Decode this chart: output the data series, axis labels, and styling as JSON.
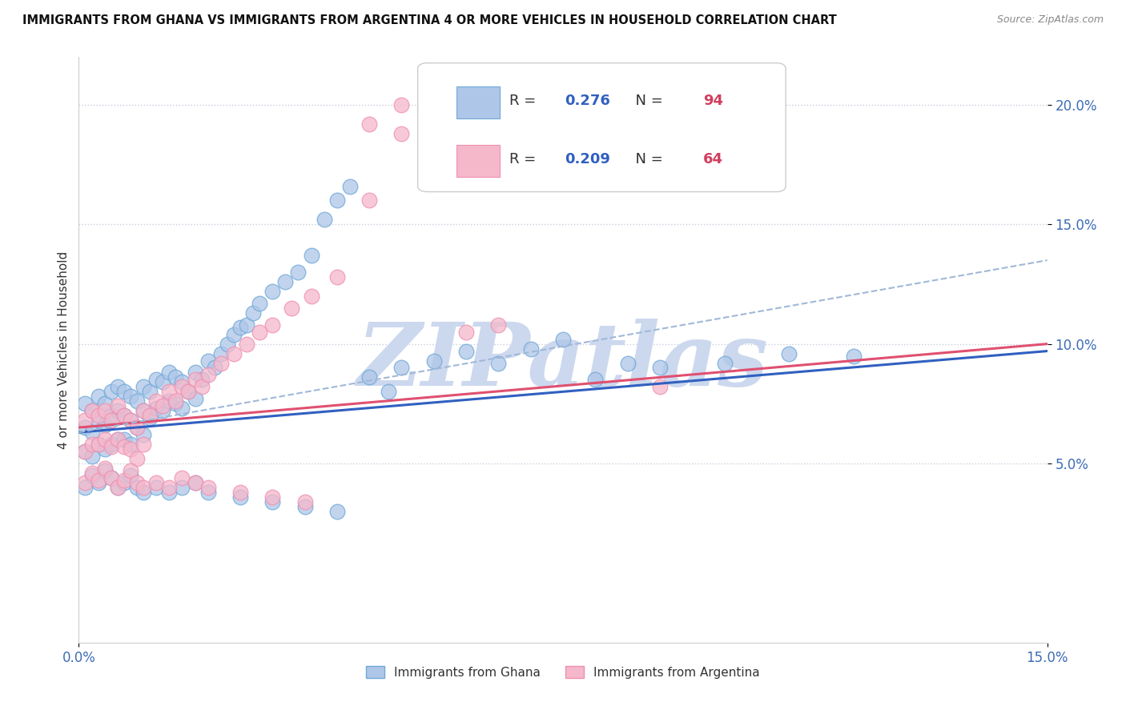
{
  "title": "IMMIGRANTS FROM GHANA VS IMMIGRANTS FROM ARGENTINA 4 OR MORE VEHICLES IN HOUSEHOLD CORRELATION CHART",
  "source": "Source: ZipAtlas.com",
  "ylabel": "4 or more Vehicles in Household",
  "x_min": 0.0,
  "x_max": 0.15,
  "y_min": -0.025,
  "y_max": 0.22,
  "x_ticks": [
    0.0,
    0.15
  ],
  "x_tick_labels": [
    "0.0%",
    "15.0%"
  ],
  "y_ticks": [
    0.05,
    0.1,
    0.15,
    0.2
  ],
  "y_tick_labels": [
    "5.0%",
    "10.0%",
    "15.0%",
    "20.0%"
  ],
  "ghana_color": "#aec6e8",
  "argentina_color": "#f5b8cb",
  "ghana_edge": "#6fa8d8",
  "argentina_edge": "#ef90b0",
  "ghana_line_color": "#3060c0",
  "argentina_line_color": "#e05070",
  "dashed_line_color": "#a0b8d8",
  "R_ghana": 0.276,
  "N_ghana": 94,
  "R_argentina": 0.209,
  "N_argentina": 64,
  "legend_R_color": "#3060c0",
  "legend_N_color": "#d04060",
  "watermark_color": "#ccd8ee",
  "ghana_line_y_start": 0.063,
  "ghana_line_y_end": 0.097,
  "argentina_line_y_start": 0.065,
  "argentina_line_y_end": 0.1,
  "dashed_line_x_start": 0.0,
  "dashed_line_x_end": 0.15,
  "dashed_line_y_start": 0.063,
  "dashed_line_y_end": 0.135,
  "ghana_x": [
    0.001,
    0.001,
    0.001,
    0.002,
    0.002,
    0.002,
    0.003,
    0.003,
    0.003,
    0.004,
    0.004,
    0.004,
    0.005,
    0.005,
    0.005,
    0.006,
    0.006,
    0.006,
    0.007,
    0.007,
    0.007,
    0.008,
    0.008,
    0.008,
    0.009,
    0.009,
    0.01,
    0.01,
    0.01,
    0.011,
    0.011,
    0.012,
    0.012,
    0.013,
    0.013,
    0.014,
    0.014,
    0.015,
    0.015,
    0.016,
    0.016,
    0.017,
    0.018,
    0.018,
    0.019,
    0.02,
    0.021,
    0.022,
    0.023,
    0.024,
    0.025,
    0.026,
    0.027,
    0.028,
    0.03,
    0.032,
    0.034,
    0.036,
    0.038,
    0.04,
    0.042,
    0.045,
    0.048,
    0.05,
    0.055,
    0.06,
    0.065,
    0.07,
    0.075,
    0.08,
    0.085,
    0.09,
    0.1,
    0.11,
    0.12,
    0.001,
    0.002,
    0.003,
    0.004,
    0.005,
    0.006,
    0.007,
    0.008,
    0.009,
    0.01,
    0.012,
    0.014,
    0.016,
    0.018,
    0.02,
    0.025,
    0.03,
    0.035,
    0.04
  ],
  "ghana_y": [
    0.075,
    0.065,
    0.055,
    0.072,
    0.063,
    0.053,
    0.078,
    0.068,
    0.058,
    0.075,
    0.066,
    0.056,
    0.08,
    0.07,
    0.058,
    0.082,
    0.072,
    0.06,
    0.08,
    0.07,
    0.06,
    0.078,
    0.068,
    0.058,
    0.076,
    0.065,
    0.082,
    0.072,
    0.062,
    0.08,
    0.069,
    0.085,
    0.073,
    0.084,
    0.072,
    0.088,
    0.076,
    0.086,
    0.075,
    0.084,
    0.073,
    0.08,
    0.088,
    0.077,
    0.085,
    0.093,
    0.09,
    0.096,
    0.1,
    0.104,
    0.107,
    0.108,
    0.113,
    0.117,
    0.122,
    0.126,
    0.13,
    0.137,
    0.152,
    0.16,
    0.166,
    0.086,
    0.08,
    0.09,
    0.093,
    0.097,
    0.092,
    0.098,
    0.102,
    0.085,
    0.092,
    0.09,
    0.092,
    0.096,
    0.095,
    0.04,
    0.045,
    0.042,
    0.047,
    0.044,
    0.04,
    0.042,
    0.045,
    0.04,
    0.038,
    0.04,
    0.038,
    0.04,
    0.042,
    0.038,
    0.036,
    0.034,
    0.032,
    0.03
  ],
  "argentina_x": [
    0.001,
    0.001,
    0.002,
    0.002,
    0.003,
    0.003,
    0.004,
    0.004,
    0.005,
    0.005,
    0.006,
    0.006,
    0.007,
    0.007,
    0.008,
    0.008,
    0.009,
    0.009,
    0.01,
    0.01,
    0.011,
    0.012,
    0.013,
    0.014,
    0.015,
    0.016,
    0.017,
    0.018,
    0.019,
    0.02,
    0.022,
    0.024,
    0.026,
    0.028,
    0.03,
    0.033,
    0.036,
    0.04,
    0.045,
    0.05,
    0.055,
    0.06,
    0.065,
    0.045,
    0.05,
    0.09,
    0.001,
    0.002,
    0.003,
    0.004,
    0.005,
    0.006,
    0.007,
    0.008,
    0.009,
    0.01,
    0.012,
    0.014,
    0.016,
    0.018,
    0.02,
    0.025,
    0.03,
    0.035
  ],
  "argentina_y": [
    0.068,
    0.055,
    0.072,
    0.058,
    0.07,
    0.058,
    0.072,
    0.06,
    0.068,
    0.057,
    0.074,
    0.06,
    0.07,
    0.057,
    0.068,
    0.056,
    0.065,
    0.052,
    0.072,
    0.058,
    0.07,
    0.076,
    0.074,
    0.08,
    0.076,
    0.082,
    0.08,
    0.085,
    0.082,
    0.087,
    0.092,
    0.096,
    0.1,
    0.105,
    0.108,
    0.115,
    0.12,
    0.128,
    0.16,
    0.2,
    0.196,
    0.105,
    0.108,
    0.192,
    0.188,
    0.082,
    0.042,
    0.046,
    0.043,
    0.048,
    0.044,
    0.04,
    0.043,
    0.047,
    0.042,
    0.04,
    0.042,
    0.04,
    0.044,
    0.042,
    0.04,
    0.038,
    0.036,
    0.034
  ]
}
